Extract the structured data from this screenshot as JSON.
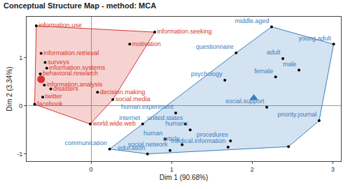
{
  "chart_data": {
    "type": "scatter",
    "title": "Conceptual Structure Map - method: MCA",
    "x_label": "Dim 1 (90.68%)",
    "y_label": "Dim 2 (3.34%)",
    "xlim": [
      -0.8,
      3.1
    ],
    "xticks": [
      0,
      1,
      2,
      3
    ],
    "ylim": [
      -1.15,
      1.85
    ],
    "yticks": [
      -1,
      0,
      1
    ],
    "grid": false,
    "series": [
      {
        "color": "#d7362f",
        "labels": [
          "information.use",
          "information.seeking",
          "motivation",
          "information.retrieval",
          "surveys",
          "behavioral.research",
          "information.systems",
          "information.analysis",
          "disasters",
          "twitter",
          "facebook",
          "decision.making",
          "social.media",
          "world.wide.web"
        ],
        "x": [
          -0.68,
          0.79,
          0.48,
          -0.62,
          -0.57,
          -0.63,
          -0.55,
          -0.58,
          -0.5,
          -0.6,
          -0.7,
          0.08,
          0.27,
          -0.01
        ],
        "y": [
          1.66,
          1.53,
          1.28,
          1.09,
          0.9,
          0.66,
          0.78,
          0.43,
          0.35,
          0.18,
          0.03,
          0.28,
          0.13,
          -0.38
        ],
        "centroid": {
          "x": -0.62,
          "y": 0.55,
          "marker": "circle"
        }
      },
      {
        "color": "#3a7fbf",
        "labels": [
          "middle.aged",
          "young.adult",
          "questionnaire",
          "adult",
          "male",
          "female",
          "psychology",
          "human.experiment",
          "social.support",
          "united.states",
          "humans",
          "human",
          "priority.journal",
          "procedures",
          "article",
          "internet",
          "social.network",
          "medical.information",
          "communication",
          "education",
          null
        ],
        "x": [
          2.24,
          3.01,
          1.8,
          2.38,
          2.58,
          2.29,
          1.66,
          1.05,
          2.18,
          1.17,
          1.23,
          0.92,
          2.83,
          1.73,
          1.13,
          0.64,
          0.98,
          1.7,
          0.23,
          0.7,
          2.45
        ],
        "y": [
          1.64,
          1.28,
          1.1,
          0.98,
          0.74,
          0.6,
          0.53,
          -0.15,
          -0.03,
          -0.38,
          -0.5,
          -0.69,
          -0.31,
          -0.73,
          -0.81,
          -0.38,
          -0.93,
          -0.86,
          -0.9,
          -1.0,
          -0.85
        ],
        "centroid": {
          "x": 2.02,
          "y": 0.16,
          "marker": "triangle-up"
        }
      }
    ]
  }
}
